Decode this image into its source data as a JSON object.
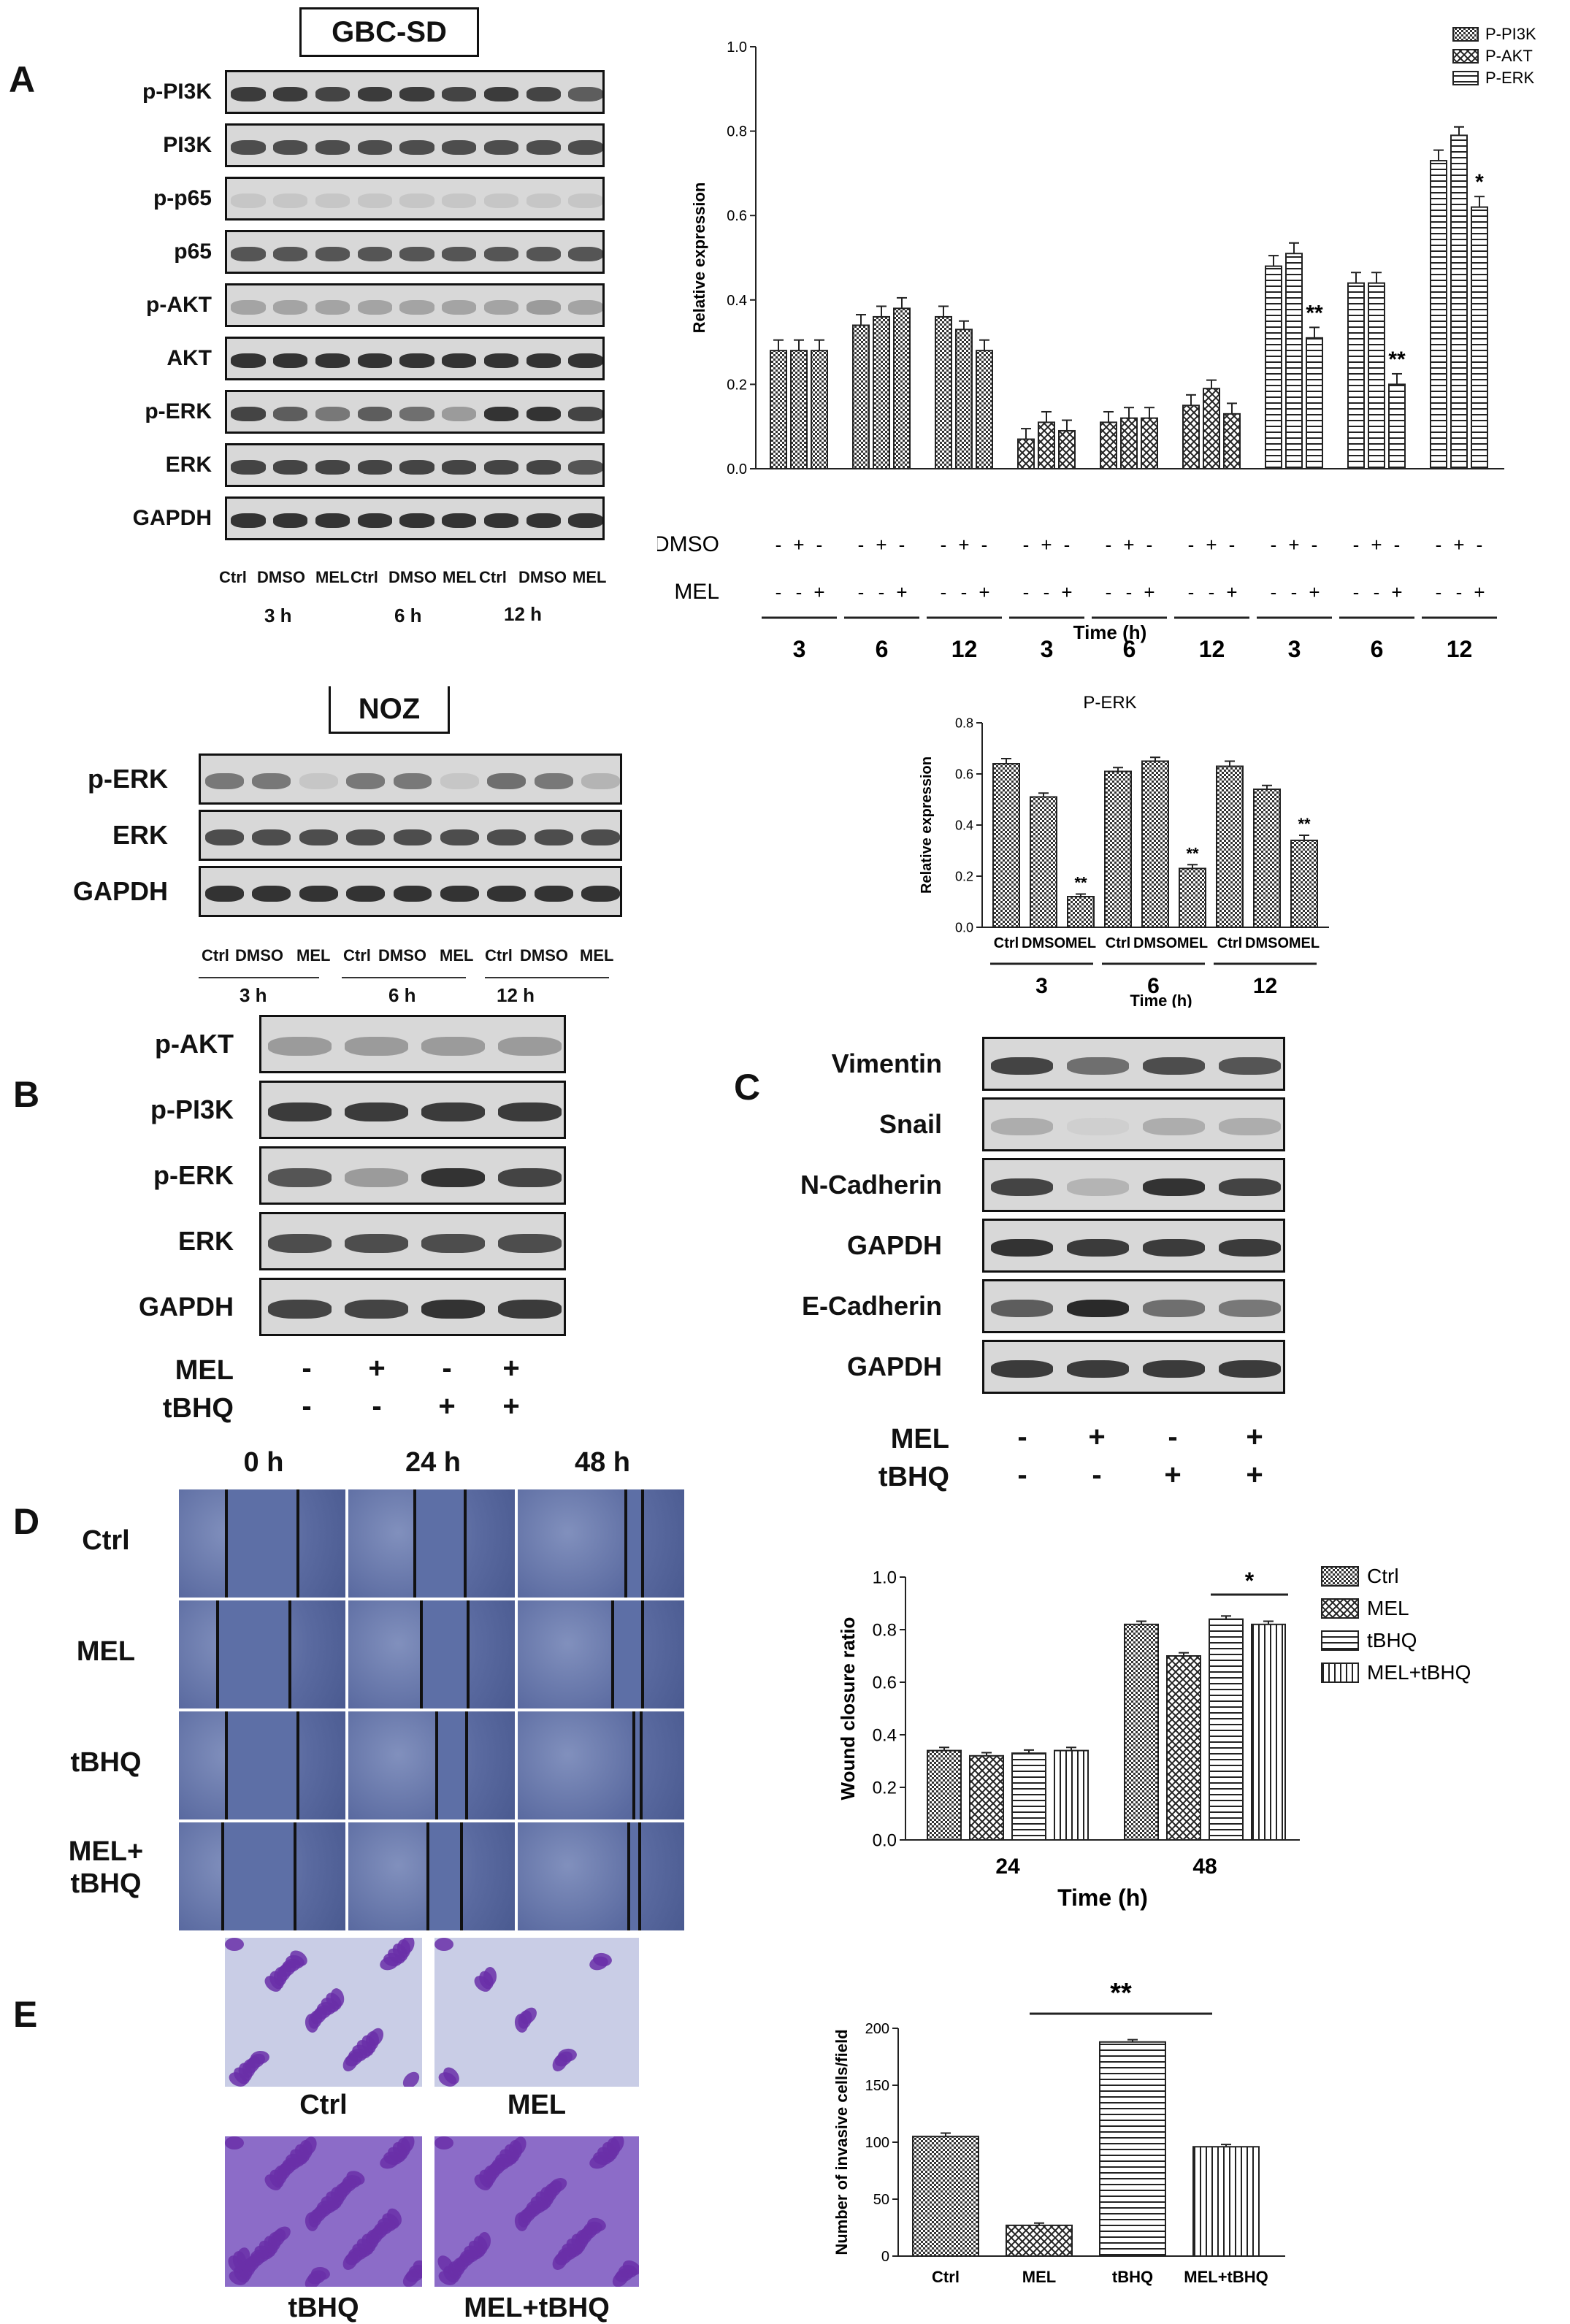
{
  "panels": {
    "A": "A",
    "B": "B",
    "C": "C",
    "D": "D",
    "E": "E"
  },
  "panelA": {
    "title": "GBC-SD",
    "blot_labels": [
      "p-PI3K",
      "PI3K",
      "p-p65",
      "p65",
      "p-AKT",
      "AKT",
      "p-ERK",
      "ERK",
      "GAPDH"
    ],
    "lane_labels": [
      "Ctrl",
      "DMSO",
      "MEL",
      "Ctrl",
      "DMSO",
      "MEL",
      "Ctrl",
      "DMSO",
      "MEL"
    ],
    "time_labels": [
      "3 h",
      "6 h",
      "12 h"
    ]
  },
  "panelA_nozBlot": {
    "title": "NOZ",
    "blot_labels": [
      "p-ERK",
      "ERK",
      "GAPDH"
    ],
    "lane_labels": [
      "Ctrl",
      "DMSO",
      "MEL",
      "Ctrl",
      "DMSO",
      "MEL",
      "Ctrl",
      "DMSO",
      "MEL"
    ],
    "time_labels": [
      "3 h",
      "6 h",
      "12 h"
    ]
  },
  "panelB": {
    "blot_labels": [
      "p-AKT",
      "p-PI3K",
      "p-ERK",
      "ERK",
      "GAPDH"
    ],
    "treatments": [
      {
        "name": "MEL",
        "signs": [
          "-",
          "+",
          "-",
          "+"
        ]
      },
      {
        "name": "tBHQ",
        "signs": [
          "-",
          "-",
          "+",
          "+"
        ]
      }
    ]
  },
  "panelC": {
    "blot_labels": [
      "Vimentin",
      "Snail",
      "N-Cadherin",
      "GAPDH",
      "E-Cadherin",
      "GAPDH"
    ],
    "treatments": [
      {
        "name": "MEL",
        "signs": [
          "-",
          "+",
          "-",
          "+"
        ]
      },
      {
        "name": "tBHQ",
        "signs": [
          "-",
          "-",
          "+",
          "+"
        ]
      }
    ]
  },
  "panelD": {
    "col_labels": [
      "0 h",
      "24 h",
      "48 h"
    ],
    "row_labels": [
      "Ctrl",
      "MEL",
      "tBHQ",
      "MEL+\ntBHQ"
    ]
  },
  "panelE": {
    "image_labels": [
      "Ctrl",
      "MEL",
      "tBHQ",
      "MEL+tBHQ"
    ]
  },
  "chart_data": [
    {
      "id": "chart1",
      "type": "bar",
      "ylabel": "Relative expression",
      "xlabel": "Time (h)",
      "ylim": [
        0,
        1.0
      ],
      "yticks": [
        "0.0",
        "0.2",
        "0.4",
        "0.6",
        "0.8",
        "1.0"
      ],
      "legend": [
        "P-PI3K",
        "P-AKT",
        "P-ERK"
      ],
      "legend_position": "top-right",
      "row_labels": [
        "DMSO",
        "MEL"
      ],
      "dmso_signs": [
        "-",
        "+",
        "-",
        "-",
        "+",
        "-",
        "-",
        "+",
        "-",
        "-",
        "+",
        "-",
        "-",
        "+",
        "-",
        "-",
        "+",
        "-",
        "-",
        "+",
        "-",
        "-",
        "+",
        "-",
        "-",
        "+",
        "-"
      ],
      "mel_signs": [
        "-",
        "-",
        "+",
        "-",
        "-",
        "+",
        "-",
        "-",
        "+",
        "-",
        "-",
        "+",
        "-",
        "-",
        "+",
        "-",
        "-",
        "+",
        "-",
        "-",
        "+",
        "-",
        "-",
        "+",
        "-",
        "-",
        "+"
      ],
      "time_groups": [
        "3",
        "6",
        "12",
        "3",
        "6",
        "12",
        "3",
        "6",
        "12"
      ],
      "series": [
        {
          "name": "P-PI3K",
          "values": [
            0.28,
            0.28,
            0.28,
            0.34,
            0.36,
            0.38,
            0.36,
            0.33,
            0.28
          ]
        },
        {
          "name": "P-AKT",
          "values": [
            0.07,
            0.11,
            0.09,
            0.11,
            0.12,
            0.12,
            0.15,
            0.19,
            0.13
          ]
        },
        {
          "name": "P-ERK",
          "values": [
            0.48,
            0.51,
            0.31,
            0.44,
            0.44,
            0.2,
            0.73,
            0.79,
            0.62
          ]
        }
      ],
      "errors": [
        0.025,
        0.025,
        0.025,
        0.025,
        0.025,
        0.025,
        0.025,
        0.02,
        0.025
      ],
      "annotations": [
        {
          "series": "P-ERK",
          "index": 2,
          "text": "**"
        },
        {
          "series": "P-ERK",
          "index": 5,
          "text": "**"
        },
        {
          "series": "P-ERK",
          "index": 8,
          "text": "*"
        }
      ]
    },
    {
      "id": "chart2",
      "type": "bar",
      "title": "P-ERK",
      "ylabel": "Relative expression",
      "xlabel": "Time (h)",
      "ylim": [
        0,
        0.8
      ],
      "yticks": [
        "0.0",
        "0.2",
        "0.4",
        "0.6",
        "0.8"
      ],
      "categories": [
        "Ctrl",
        "DMSO",
        "MEL",
        "Ctrl",
        "DMSO",
        "MEL",
        "Ctrl",
        "DMSO",
        "MEL"
      ],
      "groups": [
        "3",
        "6",
        "12"
      ],
      "values": [
        0.64,
        0.51,
        0.12,
        0.61,
        0.65,
        0.23,
        0.63,
        0.54,
        0.34
      ],
      "errors": [
        0.02,
        0.015,
        0.01,
        0.015,
        0.015,
        0.015,
        0.02,
        0.015,
        0.02
      ],
      "annotations": [
        {
          "index": 2,
          "text": "**"
        },
        {
          "index": 5,
          "text": "**"
        },
        {
          "index": 8,
          "text": "**"
        }
      ]
    },
    {
      "id": "chart3",
      "type": "bar",
      "ylabel": "Wound closure ratio",
      "xlabel": "Time (h)",
      "ylim": [
        0,
        1.0
      ],
      "yticks": [
        "0.0",
        "0.2",
        "0.4",
        "0.6",
        "0.8",
        "1.0"
      ],
      "categories": [
        "24",
        "48"
      ],
      "legend": [
        "Ctrl",
        "MEL",
        "tBHQ",
        "MEL+tBHQ"
      ],
      "legend_position": "top-right",
      "series": [
        {
          "name": "Ctrl",
          "values": [
            0.34,
            0.82
          ]
        },
        {
          "name": "MEL",
          "values": [
            0.32,
            0.7
          ]
        },
        {
          "name": "tBHQ",
          "values": [
            0.33,
            0.84
          ]
        },
        {
          "name": "MEL+tBHQ",
          "values": [
            0.34,
            0.82
          ]
        }
      ],
      "annotation": "*"
    },
    {
      "id": "chart4",
      "type": "bar",
      "ylabel": "Number of invasive cells/field",
      "ylim": [
        0,
        200
      ],
      "yticks": [
        "0",
        "50",
        "100",
        "150",
        "200"
      ],
      "categories": [
        "Ctrl",
        "MEL",
        "tBHQ",
        "MEL+tBHQ"
      ],
      "values": [
        105,
        27,
        188,
        96
      ],
      "errors": [
        3,
        2,
        2,
        2
      ],
      "annotation": "**"
    }
  ]
}
